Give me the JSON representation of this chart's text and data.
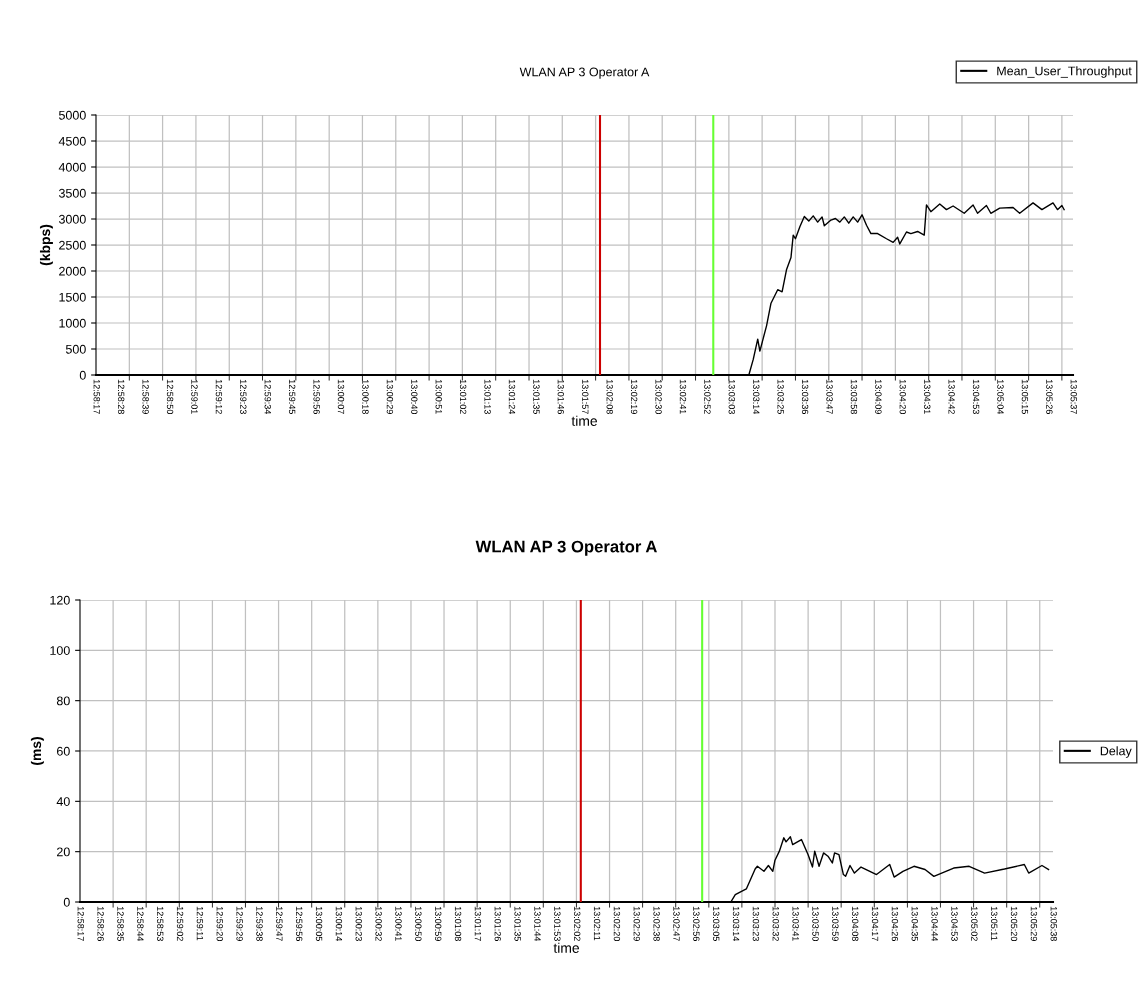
{
  "chart_data": [
    {
      "type": "line",
      "title": "WLAN AP 3 Operator A",
      "xlabel": "time",
      "ylabel": "(kbps)",
      "legend": "top right",
      "grid": true,
      "marker": "none",
      "line_style": "solid",
      "xlim": [
        12.97139,
        13.09361
      ],
      "ylim": [
        0,
        5000
      ],
      "yticks": [
        0,
        500,
        1000,
        1500,
        2000,
        2500,
        3000,
        3500,
        4000,
        4500,
        5000
      ],
      "xticks": [
        {
          "value": 12.97139,
          "label": "12:58:17"
        },
        {
          "value": 12.97444,
          "label": "12:58:28"
        },
        {
          "value": 12.9775,
          "label": "12:58:39"
        },
        {
          "value": 12.98056,
          "label": "12:58:50"
        },
        {
          "value": 12.98361,
          "label": "12:59:01"
        },
        {
          "value": 12.98667,
          "label": "12:59:12"
        },
        {
          "value": 12.98972,
          "label": "12:59:23"
        },
        {
          "value": 12.99278,
          "label": "12:59:34"
        },
        {
          "value": 12.99583,
          "label": "12:59:45"
        },
        {
          "value": 12.99889,
          "label": "12:59:56"
        },
        {
          "value": 13.00194,
          "label": "13:00:07"
        },
        {
          "value": 13.005,
          "label": "13:00:18"
        },
        {
          "value": 13.00806,
          "label": "13:00:29"
        },
        {
          "value": 13.01111,
          "label": "13:00:40"
        },
        {
          "value": 13.01417,
          "label": "13:00:51"
        },
        {
          "value": 13.01722,
          "label": "13:01:02"
        },
        {
          "value": 13.02028,
          "label": "13:01:13"
        },
        {
          "value": 13.02333,
          "label": "13:01:24"
        },
        {
          "value": 13.02639,
          "label": "13:01:35"
        },
        {
          "value": 13.02944,
          "label": "13:01:46"
        },
        {
          "value": 13.0325,
          "label": "13:01:57"
        },
        {
          "value": 13.03556,
          "label": "13:02:08"
        },
        {
          "value": 13.03861,
          "label": "13:02:19"
        },
        {
          "value": 13.04167,
          "label": "13:02:30"
        },
        {
          "value": 13.04472,
          "label": "13:02:41"
        },
        {
          "value": 13.04778,
          "label": "13:02:52"
        },
        {
          "value": 13.05083,
          "label": "13:03:03"
        },
        {
          "value": 13.05389,
          "label": "13:03:14"
        },
        {
          "value": 13.05694,
          "label": "13:03:25"
        },
        {
          "value": 13.06,
          "label": "13:03:36"
        },
        {
          "value": 13.06306,
          "label": "13:03:47"
        },
        {
          "value": 13.06611,
          "label": "13:03:58"
        },
        {
          "value": 13.06917,
          "label": "13:04:09"
        },
        {
          "value": 13.07222,
          "label": "13:04:20"
        },
        {
          "value": 13.07528,
          "label": "13:04:31"
        },
        {
          "value": 13.07833,
          "label": "13:04:42"
        },
        {
          "value": 13.08139,
          "label": "13:04:53"
        },
        {
          "value": 13.08444,
          "label": "13:05:04"
        },
        {
          "value": 13.0875,
          "label": "13:05:15"
        },
        {
          "value": 13.09056,
          "label": "13:05:26"
        },
        {
          "value": 13.09361,
          "label": "13:05:37"
        },
        {
          "value": 12.97556,
          "label": null
        },
        {
          "value": 12.97972,
          "label": null
        },
        {
          "value": 12.98389,
          "label": null
        },
        {
          "value": 12.98806,
          "label": null
        },
        {
          "value": 12.99222,
          "label": null
        },
        {
          "value": 12.99639,
          "label": null
        },
        {
          "value": 13.00056,
          "label": null
        },
        {
          "value": 13.00472,
          "label": null
        },
        {
          "value": 13.00889,
          "label": null
        },
        {
          "value": 13.01306,
          "label": null
        },
        {
          "value": 13.01722,
          "label": null
        },
        {
          "value": 13.02139,
          "label": null
        },
        {
          "value": 13.02556,
          "label": null
        },
        {
          "value": 13.02972,
          "label": null
        },
        {
          "value": 13.03389,
          "label": null
        },
        {
          "value": 13.03806,
          "label": null
        },
        {
          "value": 13.04222,
          "label": null
        },
        {
          "value": 13.04639,
          "label": null
        },
        {
          "value": 13.05056,
          "label": null
        },
        {
          "value": 13.05472,
          "label": null
        },
        {
          "value": 13.05889,
          "label": null
        },
        {
          "value": 13.06306,
          "label": null
        },
        {
          "value": 13.06722,
          "label": null
        },
        {
          "value": 13.07139,
          "label": null
        },
        {
          "value": 13.07556,
          "label": null
        },
        {
          "value": 13.07972,
          "label": null
        },
        {
          "value": 13.08389,
          "label": null
        },
        {
          "value": 13.08806,
          "label": null
        },
        {
          "value": 13.09222,
          "label": null
        }
      ],
      "ref_lines": [
        {
          "axis": "x",
          "value": 13.03444,
          "color": "#cc0000"
        },
        {
          "axis": "x",
          "value": 13.04861,
          "color": "#66ff33"
        }
      ],
      "series": [
        {
          "name": "Mean_User_Throughput",
          "color": "#000000",
          "x": [
            13.05306,
            13.05361,
            13.05417,
            13.05444,
            13.05528,
            13.05583,
            13.05667,
            13.05722,
            13.05778,
            13.05833,
            13.05861,
            13.05889,
            13.05944,
            13.06,
            13.06056,
            13.06111,
            13.06167,
            13.06222,
            13.0625,
            13.06333,
            13.06389,
            13.06444,
            13.065,
            13.06556,
            13.06611,
            13.06667,
            13.06722,
            13.06778,
            13.06833,
            13.06917,
            13.07028,
            13.07111,
            13.07167,
            13.07194,
            13.07278,
            13.07333,
            13.07417,
            13.075,
            13.07528,
            13.07583,
            13.07694,
            13.07778,
            13.07861,
            13.08,
            13.08111,
            13.08167,
            13.08278,
            13.08333,
            13.08444,
            13.08611,
            13.08694,
            13.08861,
            13.08972,
            13.09111,
            13.09167,
            13.09222,
            13.0925
          ],
          "values": [
            0,
            300,
            690,
            460,
            950,
            1380,
            1640,
            1600,
            2030,
            2260,
            2690,
            2620,
            2850,
            3050,
            2960,
            3060,
            2940,
            3040,
            2870,
            2980,
            3010,
            2940,
            3040,
            2920,
            3040,
            2940,
            3080,
            2880,
            2720,
            2720,
            2620,
            2550,
            2650,
            2520,
            2750,
            2720,
            2760,
            2690,
            3270,
            3140,
            3290,
            3180,
            3250,
            3110,
            3270,
            3110,
            3260,
            3110,
            3210,
            3220,
            3110,
            3310,
            3180,
            3310,
            3180,
            3260,
            3180
          ]
        }
      ]
    },
    {
      "type": "line",
      "title": "WLAN AP 3 Operator A",
      "xlabel": "time",
      "ylabel": "(ms)",
      "legend": "right",
      "grid": true,
      "marker": "none",
      "line_style": "solid",
      "xlim": [
        12.97139,
        13.09389
      ],
      "ylim": [
        0,
        120
      ],
      "yticks": [
        0,
        20,
        40,
        60,
        80,
        100,
        120
      ],
      "xticks": [
        {
          "value": 12.97139,
          "label": "12:58:17"
        },
        {
          "value": 12.97389,
          "label": "12:58:26"
        },
        {
          "value": 12.97639,
          "label": "12:58:35"
        },
        {
          "value": 12.97889,
          "label": "12:58:44"
        },
        {
          "value": 12.98139,
          "label": "12:58:53"
        },
        {
          "value": 12.98389,
          "label": "12:59:02"
        },
        {
          "value": 12.98639,
          "label": "12:59:11"
        },
        {
          "value": 12.98889,
          "label": "12:59:20"
        },
        {
          "value": 12.99139,
          "label": "12:59:29"
        },
        {
          "value": 12.99389,
          "label": "12:59:38"
        },
        {
          "value": 12.99639,
          "label": "12:59:47"
        },
        {
          "value": 12.99889,
          "label": "12:59:56"
        },
        {
          "value": 13.00139,
          "label": "13:00:05"
        },
        {
          "value": 13.00389,
          "label": "13:00:14"
        },
        {
          "value": 13.00639,
          "label": "13:00:23"
        },
        {
          "value": 13.00889,
          "label": "13:00:32"
        },
        {
          "value": 13.01139,
          "label": "13:00:41"
        },
        {
          "value": 13.01389,
          "label": "13:00:50"
        },
        {
          "value": 13.01639,
          "label": "13:00:59"
        },
        {
          "value": 13.01889,
          "label": "13:01:08"
        },
        {
          "value": 13.02139,
          "label": "13:01:17"
        },
        {
          "value": 13.02389,
          "label": "13:01:26"
        },
        {
          "value": 13.02639,
          "label": "13:01:35"
        },
        {
          "value": 13.02889,
          "label": "13:01:44"
        },
        {
          "value": 13.03139,
          "label": "13:01:53"
        },
        {
          "value": 13.03389,
          "label": "13:02:02"
        },
        {
          "value": 13.03639,
          "label": "13:02:11"
        },
        {
          "value": 13.03889,
          "label": "13:02:20"
        },
        {
          "value": 13.04139,
          "label": "13:02:29"
        },
        {
          "value": 13.04389,
          "label": "13:02:38"
        },
        {
          "value": 13.04639,
          "label": "13:02:47"
        },
        {
          "value": 13.04889,
          "label": "13:02:56"
        },
        {
          "value": 13.05139,
          "label": "13:03:05"
        },
        {
          "value": 13.05389,
          "label": "13:03:14"
        },
        {
          "value": 13.05639,
          "label": "13:03:23"
        },
        {
          "value": 13.05889,
          "label": "13:03:32"
        },
        {
          "value": 13.06139,
          "label": "13:03:41"
        },
        {
          "value": 13.06389,
          "label": "13:03:50"
        },
        {
          "value": 13.06639,
          "label": "13:03:59"
        },
        {
          "value": 13.06889,
          "label": "13:04:08"
        },
        {
          "value": 13.07139,
          "label": "13:04:17"
        },
        {
          "value": 13.07389,
          "label": "13:04:26"
        },
        {
          "value": 13.07639,
          "label": "13:04:35"
        },
        {
          "value": 13.07889,
          "label": "13:04:44"
        },
        {
          "value": 13.08139,
          "label": "13:04:53"
        },
        {
          "value": 13.08389,
          "label": "13:05:02"
        },
        {
          "value": 13.08639,
          "label": "13:05:11"
        },
        {
          "value": 13.08889,
          "label": "13:05:20"
        },
        {
          "value": 13.09139,
          "label": "13:05:29"
        },
        {
          "value": 13.09389,
          "label": "13:05:38"
        },
        {
          "value": 12.97556,
          "label": null
        },
        {
          "value": 12.97972,
          "label": null
        },
        {
          "value": 12.98389,
          "label": null
        },
        {
          "value": 12.98806,
          "label": null
        },
        {
          "value": 12.99222,
          "label": null
        },
        {
          "value": 12.99639,
          "label": null
        },
        {
          "value": 13.00056,
          "label": null
        },
        {
          "value": 13.00472,
          "label": null
        },
        {
          "value": 13.00889,
          "label": null
        },
        {
          "value": 13.01306,
          "label": null
        },
        {
          "value": 13.01722,
          "label": null
        },
        {
          "value": 13.02139,
          "label": null
        },
        {
          "value": 13.02556,
          "label": null
        },
        {
          "value": 13.02972,
          "label": null
        },
        {
          "value": 13.03389,
          "label": null
        },
        {
          "value": 13.03806,
          "label": null
        },
        {
          "value": 13.04222,
          "label": null
        },
        {
          "value": 13.04639,
          "label": null
        },
        {
          "value": 13.05056,
          "label": null
        },
        {
          "value": 13.05472,
          "label": null
        },
        {
          "value": 13.05889,
          "label": null
        },
        {
          "value": 13.06306,
          "label": null
        },
        {
          "value": 13.06722,
          "label": null
        },
        {
          "value": 13.07139,
          "label": null
        },
        {
          "value": 13.07556,
          "label": null
        },
        {
          "value": 13.07972,
          "label": null
        },
        {
          "value": 13.08389,
          "label": null
        },
        {
          "value": 13.08806,
          "label": null
        },
        {
          "value": 13.09222,
          "label": null
        }
      ],
      "ref_lines": [
        {
          "axis": "x",
          "value": 13.03444,
          "color": "#cc0000"
        },
        {
          "axis": "x",
          "value": 13.04972,
          "color": "#66ff33"
        }
      ],
      "series": [
        {
          "name": "Delay",
          "color": "#000000",
          "x": [
            13.05333,
            13.05389,
            13.05528,
            13.05639,
            13.05667,
            13.0575,
            13.05806,
            13.05861,
            13.05889,
            13.05944,
            13.06,
            13.06028,
            13.06083,
            13.06111,
            13.06222,
            13.06306,
            13.06361,
            13.06389,
            13.06444,
            13.065,
            13.06556,
            13.06611,
            13.06639,
            13.06694,
            13.0675,
            13.06778,
            13.06833,
            13.06889,
            13.06972,
            13.07083,
            13.07167,
            13.07333,
            13.07389,
            13.075,
            13.07639,
            13.07778,
            13.07889,
            13.08139,
            13.08333,
            13.08528,
            13.08778,
            13.09028,
            13.09083,
            13.0925,
            13.09333
          ],
          "values": [
            0,
            2.9,
            5.2,
            13.1,
            14.2,
            12.2,
            14.5,
            12.2,
            16.6,
            20.2,
            25.5,
            23.9,
            25.9,
            22.8,
            24.8,
            18.8,
            13.9,
            20.2,
            14.2,
            19.5,
            18.2,
            15.5,
            19.5,
            18.8,
            10.9,
            10.2,
            14.5,
            11.5,
            13.9,
            12.2,
            10.9,
            14.9,
            9.9,
            12.2,
            14.2,
            12.9,
            10.2,
            13.5,
            14.2,
            11.5,
            13.1,
            14.9,
            11.5,
            14.5,
            12.9
          ]
        }
      ]
    }
  ]
}
